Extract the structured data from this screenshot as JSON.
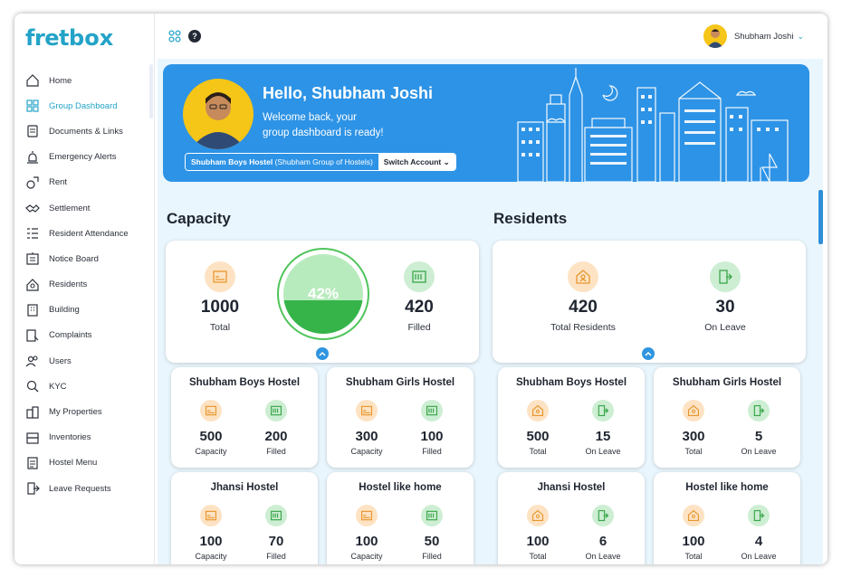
{
  "brand": {
    "part1": "fret",
    "part2": "box"
  },
  "sidebar": {
    "items": [
      {
        "label": "Home",
        "icon": "home-icon"
      },
      {
        "label": "Group Dashboard",
        "icon": "grid-icon",
        "active": true
      },
      {
        "label": "Documents & Links",
        "icon": "document-icon"
      },
      {
        "label": "Emergency Alerts",
        "icon": "alarm-icon"
      },
      {
        "label": "Rent",
        "icon": "rent-icon"
      },
      {
        "label": "Settlement",
        "icon": "handshake-icon"
      },
      {
        "label": "Resident Attendance",
        "icon": "attendance-icon"
      },
      {
        "label": "Notice Board",
        "icon": "notice-icon"
      },
      {
        "label": "Residents",
        "icon": "residents-icon"
      },
      {
        "label": "Building",
        "icon": "building-icon"
      },
      {
        "label": "Complaints",
        "icon": "complaint-icon"
      },
      {
        "label": "Users",
        "icon": "users-icon"
      },
      {
        "label": "KYC",
        "icon": "kyc-icon"
      },
      {
        "label": "My Properties",
        "icon": "properties-icon"
      },
      {
        "label": "Inventories",
        "icon": "inventory-icon"
      },
      {
        "label": "Hostel Menu",
        "icon": "menu-icon"
      },
      {
        "label": "Leave Requests",
        "icon": "leave-icon"
      }
    ]
  },
  "topbar": {
    "help": "?",
    "user_name": "Shubham Joshi"
  },
  "banner": {
    "greeting": "Hello, Shubham Joshi",
    "welcome_line1": "Welcome back, your",
    "welcome_line2": "group dashboard is ready!",
    "hostel_name": "Shubham Boys Hostel",
    "group_name": "(Shubham Group of Hostels)",
    "switch_label": "Switch Account"
  },
  "capacity": {
    "title": "Capacity",
    "total_value": "1000",
    "total_label": "Total",
    "percent": "42%",
    "fill_fraction": 0.42,
    "filled_value": "420",
    "filled_label": "Filled",
    "hostels": [
      {
        "name": "Shubham Boys Hostel",
        "capacity": "500",
        "filled": "200"
      },
      {
        "name": "Shubham Girls Hostel",
        "capacity": "300",
        "filled": "100"
      },
      {
        "name": "Jhansi Hostel",
        "capacity": "100",
        "filled": "70"
      },
      {
        "name": "Hostel like home",
        "capacity": "100",
        "filled": "50"
      }
    ],
    "capacity_label": "Capacity",
    "filled_small_label": "Filled"
  },
  "residents": {
    "title": "Residents",
    "total_value": "420",
    "total_label": "Total Residents",
    "leave_value": "30",
    "leave_label": "On Leave",
    "hostels": [
      {
        "name": "Shubham Boys Hostel",
        "total": "500",
        "leave": "15"
      },
      {
        "name": "Shubham Girls Hostel",
        "total": "300",
        "leave": "5"
      },
      {
        "name": "Jhansi Hostel",
        "total": "100",
        "leave": "6"
      },
      {
        "name": "Hostel like home",
        "total": "100",
        "leave": "4"
      }
    ],
    "total_small_label": "Total",
    "leave_small_label": "On Leave"
  },
  "colors": {
    "accent": "#23a3c8",
    "banner": "#2d93e6",
    "orange_bg": "#fde3c4",
    "green_bg": "#cdeed3",
    "gauge": "#36b44a"
  }
}
